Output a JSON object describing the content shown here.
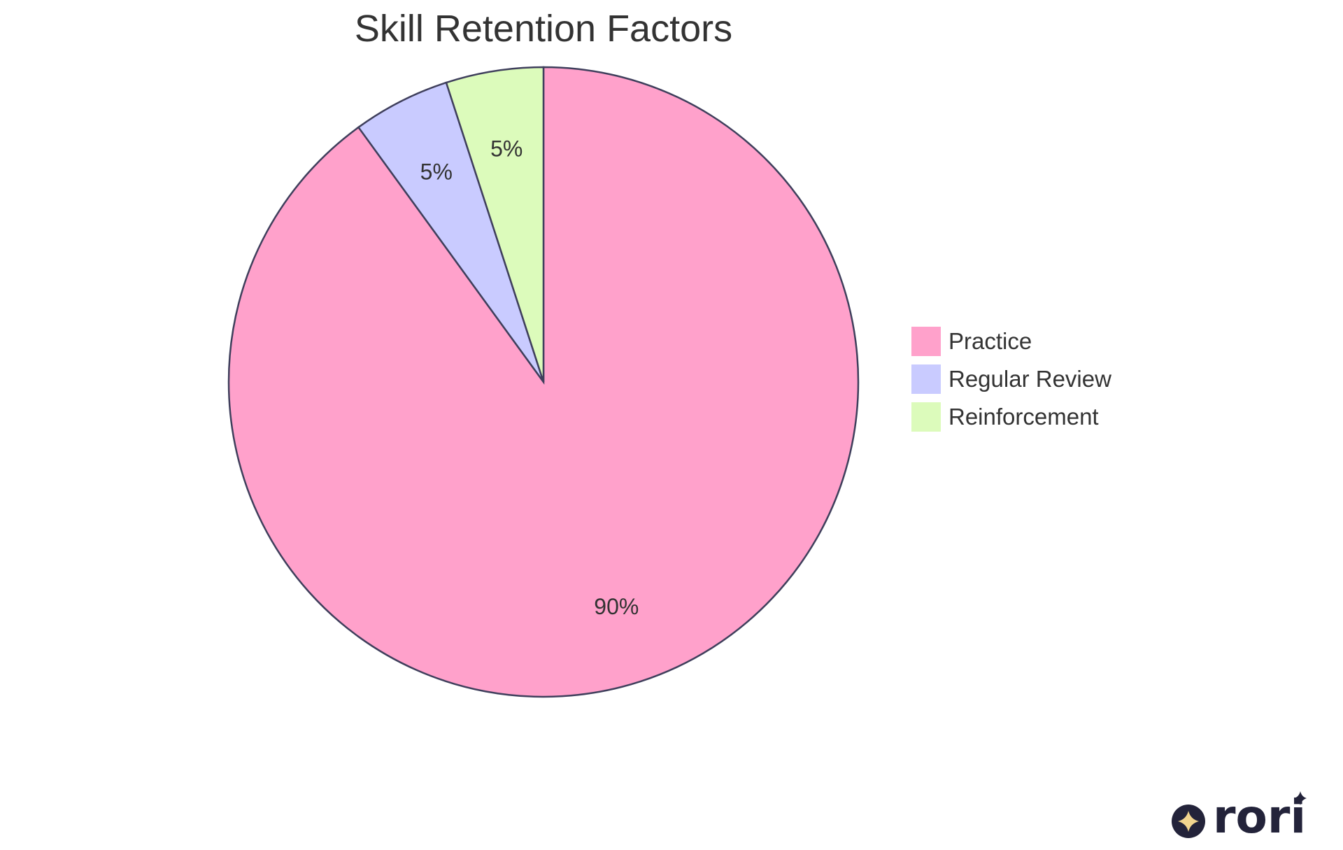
{
  "chart_data": {
    "type": "pie",
    "title": "Skill Retention Factors",
    "slices": [
      {
        "label": "Practice",
        "value": 90,
        "display": "90%",
        "color": "#FFA1CB"
      },
      {
        "label": "Regular Review",
        "value": 5,
        "display": "5%",
        "color": "#C9CBFF"
      },
      {
        "label": "Reinforcement",
        "value": 5,
        "display": "5%",
        "color": "#DCFBBB"
      }
    ],
    "stroke_color": "#3F3F5C",
    "legend_position": "right"
  },
  "watermark": {
    "text": "rori",
    "color": "#23233A",
    "star_color": "#F2D58F"
  }
}
